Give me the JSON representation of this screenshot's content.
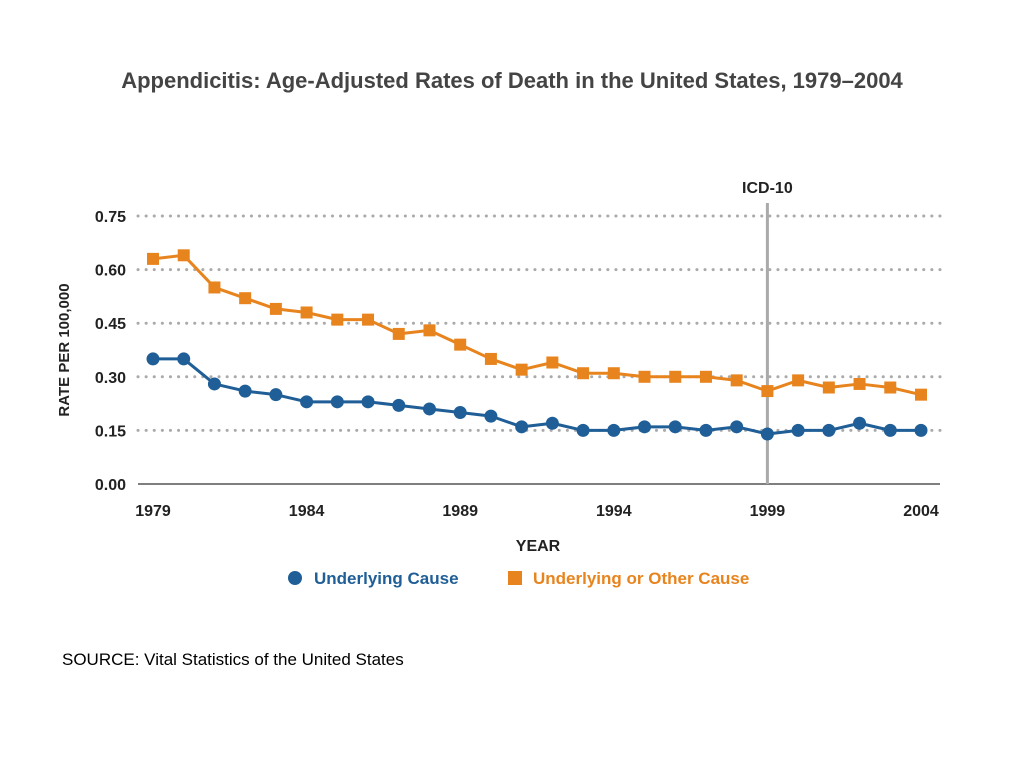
{
  "title": "Appendicitis:  Age-Adjusted Rates of Death in the United States, 1979–2004",
  "source": "SOURCE:  Vital Statistics of the United States",
  "chart_data": {
    "type": "line",
    "title": "Appendicitis:  Age-Adjusted Rates of Death in the United States, 1979–2004",
    "xlabel": "YEAR",
    "ylabel": "RATE PER 100,000",
    "x": [
      1979,
      1980,
      1981,
      1982,
      1983,
      1984,
      1985,
      1986,
      1987,
      1988,
      1989,
      1990,
      1991,
      1992,
      1993,
      1994,
      1995,
      1996,
      1997,
      1998,
      1999,
      2000,
      2001,
      2002,
      2003,
      2004
    ],
    "xticks": [
      "1979",
      "1984",
      "1989",
      "1994",
      "1999",
      "2004"
    ],
    "ylim": [
      0,
      0.75
    ],
    "yticks": [
      "0.00",
      "0.15",
      "0.30",
      "0.45",
      "0.60",
      "0.75"
    ],
    "grid": "horizontal dotted",
    "legend_position": "bottom",
    "annotation": {
      "label": "ICD-10",
      "x": 1999
    },
    "series": [
      {
        "name": "Underlying Cause",
        "marker": "circle",
        "color": "#1f5e96",
        "values": [
          0.35,
          0.35,
          0.28,
          0.26,
          0.25,
          0.23,
          0.23,
          0.23,
          0.22,
          0.21,
          0.2,
          0.19,
          0.16,
          0.17,
          0.15,
          0.15,
          0.16,
          0.16,
          0.15,
          0.16,
          0.14,
          0.15,
          0.15,
          0.17,
          0.15,
          0.15
        ]
      },
      {
        "name": "Underlying or Other Cause",
        "marker": "square",
        "color": "#e8841e",
        "values": [
          0.63,
          0.64,
          0.55,
          0.52,
          0.49,
          0.48,
          0.46,
          0.46,
          0.42,
          0.43,
          0.39,
          0.35,
          0.32,
          0.34,
          0.31,
          0.31,
          0.3,
          0.3,
          0.3,
          0.29,
          0.26,
          0.29,
          0.27,
          0.28,
          0.27,
          0.25
        ]
      }
    ]
  }
}
